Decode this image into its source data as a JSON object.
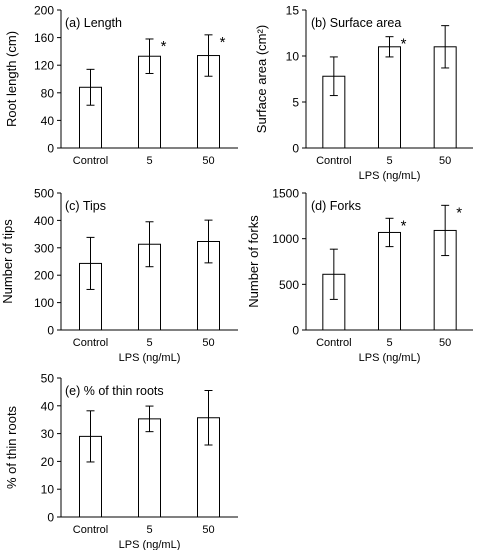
{
  "chart_data": [
    {
      "type": "bar",
      "title": "(a) Length",
      "xlabel": "",
      "ylabel": "Root length (cm)",
      "categories": [
        "Control",
        "5",
        "50"
      ],
      "values": [
        88,
        133,
        134
      ],
      "errors": [
        26,
        25,
        30
      ],
      "significance": [
        "",
        "*",
        "*"
      ],
      "ylim": [
        0,
        200
      ],
      "yticks": [
        0,
        40,
        80,
        120,
        160,
        200
      ]
    },
    {
      "type": "bar",
      "title": "(b) Surface area",
      "xlabel": "LPS (ng/mL)",
      "ylabel": "Surface area (cm²)",
      "categories": [
        "Control",
        "5",
        "50"
      ],
      "values": [
        7.8,
        11.0,
        11.0
      ],
      "errors": [
        2.1,
        1.1,
        2.3
      ],
      "significance": [
        "",
        "*",
        ""
      ],
      "ylim": [
        0,
        15
      ],
      "yticks": [
        0,
        5,
        10,
        15
      ]
    },
    {
      "type": "bar",
      "title": "(c) Tips",
      "xlabel": "LPS (ng/mL)",
      "ylabel": "Number of tips",
      "categories": [
        "Control",
        "5",
        "50"
      ],
      "values": [
        243,
        313,
        323
      ],
      "errors": [
        95,
        82,
        78
      ],
      "significance": [
        "",
        "",
        ""
      ],
      "ylim": [
        0,
        500
      ],
      "yticks": [
        0,
        100,
        200,
        300,
        400,
        500
      ]
    },
    {
      "type": "bar",
      "title": "(d) Forks",
      "xlabel": "LPS (ng/mL)",
      "ylabel": "Number of forks",
      "categories": [
        "Control",
        "5",
        "50"
      ],
      "values": [
        610,
        1068,
        1090
      ],
      "errors": [
        275,
        155,
        275
      ],
      "significance": [
        "",
        "*",
        "*"
      ],
      "ylim": [
        0,
        1500
      ],
      "yticks": [
        0,
        500,
        1000,
        1500
      ]
    },
    {
      "type": "bar",
      "title": "(e) % of thin roots",
      "xlabel": "LPS (ng/mL)",
      "ylabel": "% of thin roots",
      "categories": [
        "Control",
        "5",
        "50"
      ],
      "values": [
        29,
        35.3,
        35.7
      ],
      "errors": [
        9.2,
        4.6,
        9.8
      ],
      "significance": [
        "",
        "",
        ""
      ],
      "ylim": [
        0,
        50
      ],
      "yticks": [
        0,
        10,
        20,
        30,
        40,
        50
      ]
    }
  ]
}
